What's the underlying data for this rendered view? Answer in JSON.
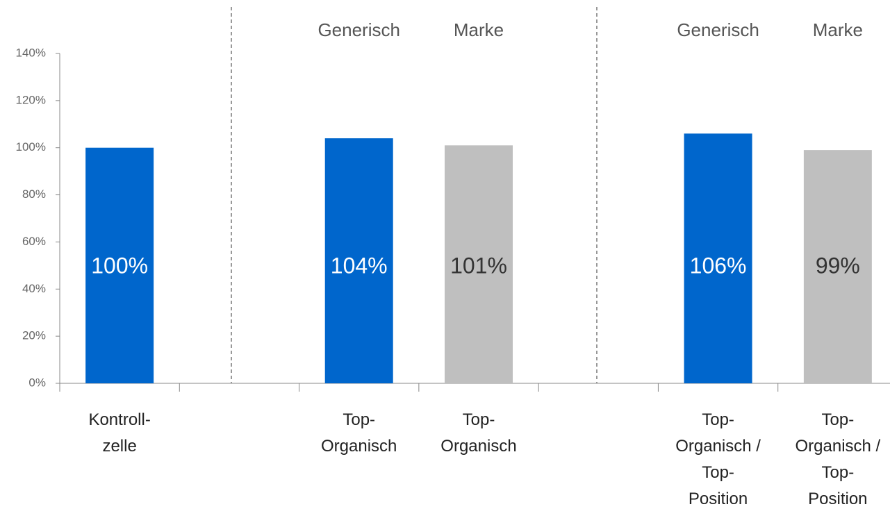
{
  "chart_data": {
    "type": "bar",
    "categories": [
      "Kontroll-\nzelle",
      null,
      "Top-\nOrganisch",
      "Top-\nOrganisch",
      null,
      "Top-\nOrganisch /\nTop-\nPosition",
      "Top-\nOrganisch /\nTop-\nPosition"
    ],
    "group_labels": [
      null,
      null,
      "Generisch",
      "Marke",
      null,
      "Generisch",
      "Marke"
    ],
    "values": [
      100,
      null,
      104,
      101,
      null,
      106,
      99
    ],
    "value_labels": [
      "100%",
      null,
      "104%",
      "101%",
      null,
      "106%",
      "99%"
    ],
    "colors": [
      "#0066cc",
      null,
      "#0066cc",
      "#bfbfbf",
      null,
      "#0066cc",
      "#bfbfbf"
    ],
    "ylim": [
      0,
      140
    ],
    "yticks": [
      {
        "value": 0,
        "label": "0%"
      },
      {
        "value": 20,
        "label": "20%"
      },
      {
        "value": 40,
        "label": "40%"
      },
      {
        "value": 60,
        "label": "60%"
      },
      {
        "value": 80,
        "label": "80%"
      },
      {
        "value": 100,
        "label": "100%"
      },
      {
        "value": 120,
        "label": "120%"
      },
      {
        "value": 140,
        "label": "140%"
      }
    ],
    "grid": false
  }
}
